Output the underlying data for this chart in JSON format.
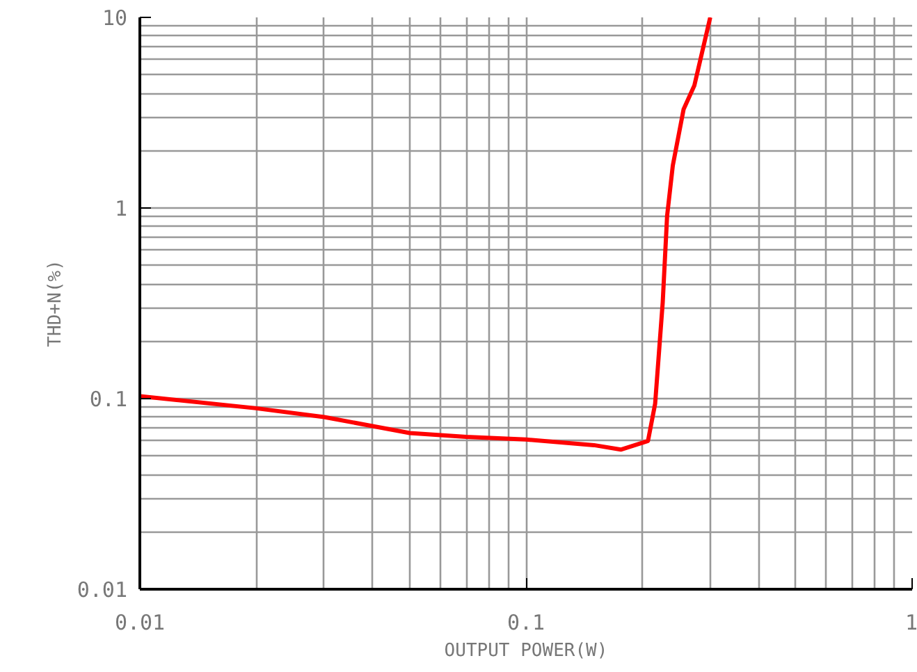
{
  "chart_data": {
    "type": "line",
    "xlabel": "OUTPUT POWER(W)",
    "ylabel": "THD+N(%)",
    "log": "xy",
    "grid": true,
    "xlim": [
      0.01,
      1
    ],
    "ylim": [
      0.01,
      10
    ],
    "xticks": [
      {
        "value": 0.01,
        "label": "0.01"
      },
      {
        "value": 0.1,
        "label": "0.1"
      },
      {
        "value": 1,
        "label": "1"
      }
    ],
    "yticks": [
      {
        "value": 0.01,
        "label": "0.01"
      },
      {
        "value": 0.1,
        "label": "0.1"
      },
      {
        "value": 1,
        "label": "1"
      },
      {
        "value": 10,
        "label": "10"
      }
    ],
    "line_style": "solid",
    "series": [
      {
        "color": "#ff0000",
        "x": [
          0.01,
          0.02,
          0.03,
          0.05,
          0.07,
          0.1,
          0.15,
          0.176,
          0.207,
          0.216,
          0.226,
          0.232,
          0.24,
          0.256,
          0.273,
          0.3
        ],
        "values": [
          0.103,
          0.089,
          0.08,
          0.066,
          0.063,
          0.061,
          0.057,
          0.054,
          0.06,
          0.094,
          0.32,
          0.91,
          1.67,
          3.3,
          4.4,
          10
        ]
      }
    ]
  }
}
